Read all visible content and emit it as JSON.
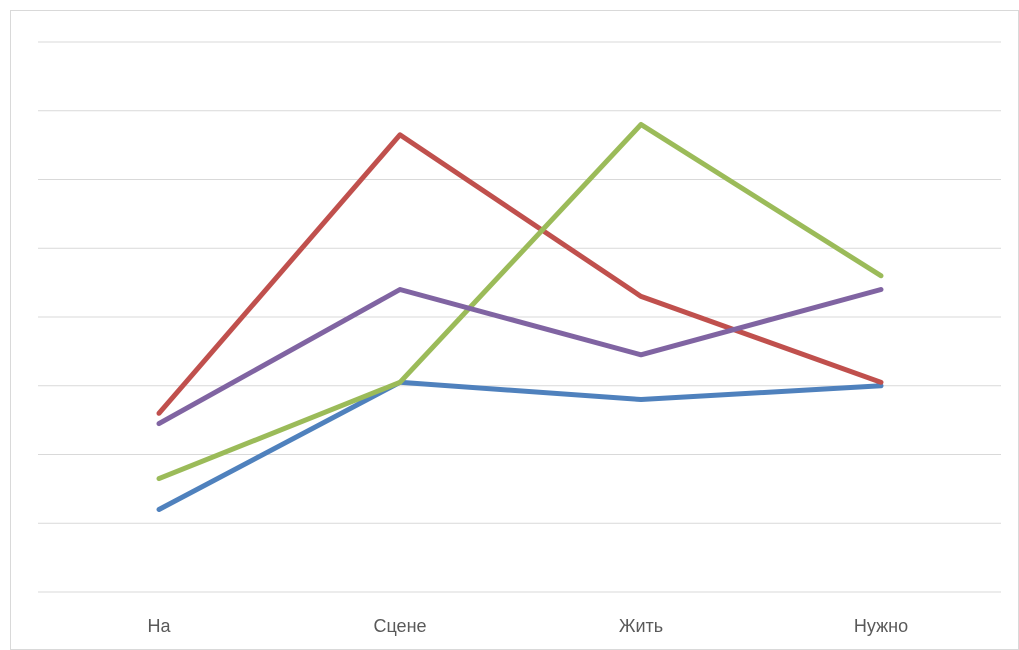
{
  "chart_data": {
    "type": "line",
    "categories": [
      "На",
      "Сцене",
      "Жить",
      "Нужно"
    ],
    "series": [
      {
        "color": "#4f81bd",
        "values": [
          1.2,
          3.05,
          2.8,
          3.0
        ]
      },
      {
        "color": "#c0504d",
        "values": [
          2.6,
          6.65,
          4.3,
          3.05
        ]
      },
      {
        "color": "#9bbb59",
        "values": [
          1.65,
          3.05,
          6.8,
          4.6
        ]
      },
      {
        "color": "#8064a2",
        "values": [
          2.45,
          4.4,
          3.45,
          4.4
        ]
      }
    ],
    "ylim": [
      0,
      8
    ],
    "grid": true,
    "legend": "none"
  }
}
